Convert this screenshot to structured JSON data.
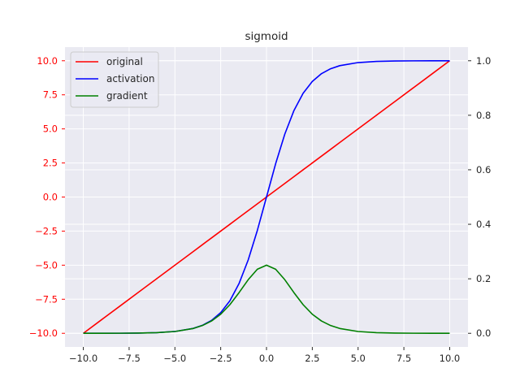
{
  "chart_data": {
    "type": "line",
    "title": "sigmoid",
    "xlabel": "",
    "ylabel": "",
    "xlim": [
      -11.0,
      11.0
    ],
    "ylim_left": [
      -11.0,
      11.0
    ],
    "ylim_right": [
      -0.05,
      1.05
    ],
    "grid": true,
    "legend_position": "top-left",
    "x_ticks": [
      -10.0,
      -7.5,
      -5.0,
      -2.5,
      0.0,
      2.5,
      5.0,
      7.5,
      10.0
    ],
    "x_tick_labels": [
      "−10.0",
      "−7.5",
      "−5.0",
      "−2.5",
      "0.0",
      "2.5",
      "5.0",
      "7.5",
      "10.0"
    ],
    "y_left_ticks": [
      -10.0,
      -7.5,
      -5.0,
      -2.5,
      0.0,
      2.5,
      5.0,
      7.5,
      10.0
    ],
    "y_left_tick_labels": [
      "−10.0",
      "−7.5",
      "−5.0",
      "−2.5",
      "0.0",
      "2.5",
      "5.0",
      "7.5",
      "10.0"
    ],
    "y_right_ticks": [
      0.0,
      0.2,
      0.4,
      0.6,
      0.8,
      1.0
    ],
    "y_right_tick_labels": [
      "0.0",
      "0.2",
      "0.4",
      "0.6",
      "0.8",
      "1.0"
    ],
    "x": [
      -10,
      -9,
      -8,
      -7,
      -6,
      -5,
      -4,
      -3.5,
      -3,
      -2.5,
      -2,
      -1.5,
      -1,
      -0.5,
      0,
      0.5,
      1,
      1.5,
      2,
      2.5,
      3,
      3.5,
      4,
      5,
      6,
      7,
      8,
      9,
      10
    ],
    "series": [
      {
        "name": "original",
        "axis": "left",
        "color": "#ff0000",
        "values": [
          -10,
          -9,
          -8,
          -7,
          -6,
          -5,
          -4,
          -3.5,
          -3,
          -2.5,
          -2,
          -1.5,
          -1,
          -0.5,
          0,
          0.5,
          1,
          1.5,
          2,
          2.5,
          3,
          3.5,
          4,
          5,
          6,
          7,
          8,
          9,
          10
        ]
      },
      {
        "name": "activation",
        "axis": "right",
        "color": "#0000ff",
        "values": [
          0.0,
          0.0001,
          0.0003,
          0.0009,
          0.0025,
          0.0067,
          0.018,
          0.0293,
          0.0474,
          0.0759,
          0.1192,
          0.1824,
          0.2689,
          0.3775,
          0.5,
          0.6225,
          0.7311,
          0.8176,
          0.8808,
          0.9241,
          0.9526,
          0.9707,
          0.982,
          0.9933,
          0.9975,
          0.9991,
          0.9997,
          0.9999,
          1.0
        ]
      },
      {
        "name": "gradient",
        "axis": "right",
        "color": "#008000",
        "values": [
          0.0,
          0.0001,
          0.0003,
          0.0009,
          0.0025,
          0.0066,
          0.0177,
          0.0285,
          0.0452,
          0.0701,
          0.105,
          0.1491,
          0.1966,
          0.235,
          0.25,
          0.235,
          0.1966,
          0.1491,
          0.105,
          0.0701,
          0.0452,
          0.0285,
          0.0177,
          0.0066,
          0.0025,
          0.0009,
          0.0003,
          0.0001,
          0.0
        ]
      }
    ],
    "colors": {
      "axes_background": "#eaeaf2",
      "grid": "#ffffff",
      "left_tick_color": "#ff0000",
      "right_tick_color": "#262626",
      "x_tick_color": "#262626",
      "title_color": "#262626"
    }
  }
}
